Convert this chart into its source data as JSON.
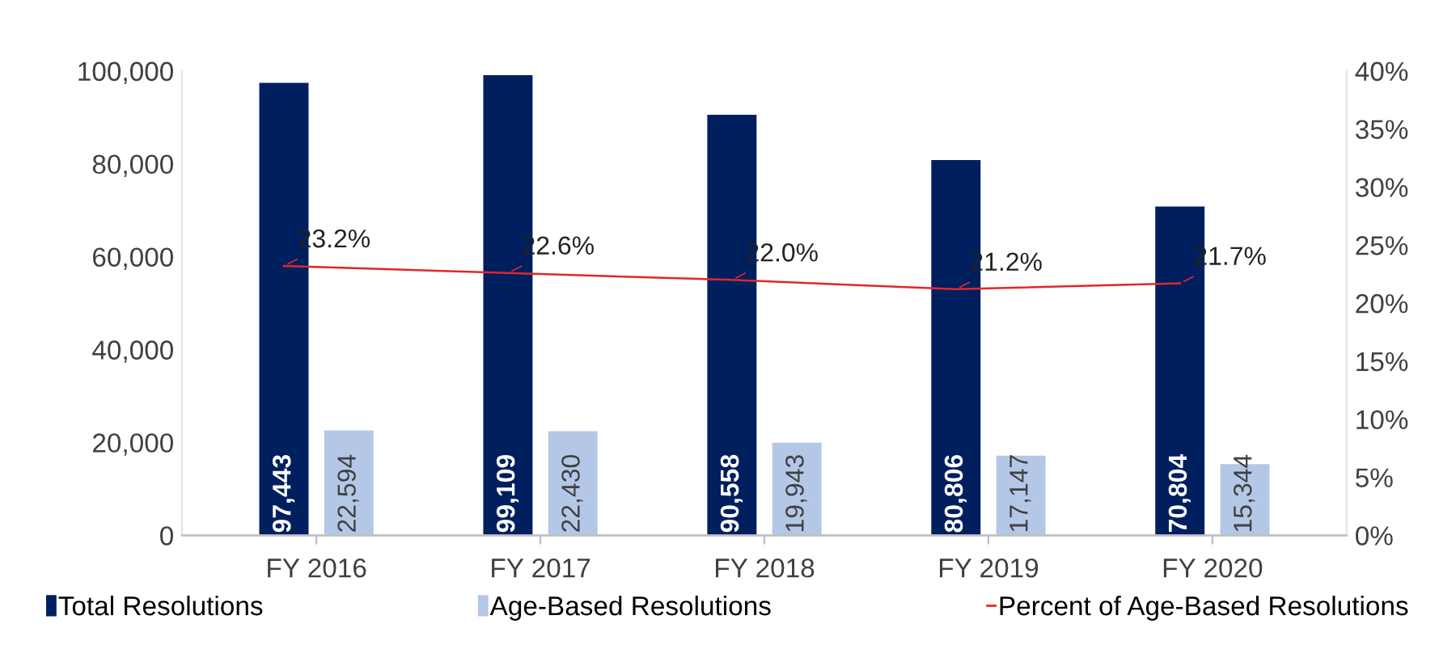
{
  "chart_data": {
    "type": "bar",
    "categories": [
      "FY 2016",
      "FY 2017",
      "FY 2018",
      "FY 2019",
      "FY 2020"
    ],
    "series": [
      {
        "name": "Total Resolutions",
        "color": "#001f5f",
        "values": [
          97443,
          99109,
          90558,
          80806,
          70804
        ],
        "value_labels": [
          "97,443",
          "99,109",
          "90,558",
          "80,806",
          "70,804"
        ]
      },
      {
        "name": "Age-Based Resolutions",
        "color": "#b4c7e7",
        "values": [
          22594,
          22430,
          19943,
          17147,
          15344
        ],
        "value_labels": [
          "22,594",
          "22,430",
          "19,943",
          "17,147",
          "15,344"
        ]
      },
      {
        "name": "Percent of Age-Based Resolutions",
        "type": "line",
        "axis": "y2",
        "color": "#e3262b",
        "values": [
          23.2,
          22.6,
          22.0,
          21.2,
          21.7
        ],
        "value_labels": [
          "23.2%",
          "22.6%",
          "22.0%",
          "21.2%",
          "21.7%"
        ]
      }
    ],
    "ylim": [
      0,
      100000
    ],
    "yticks": [
      {
        "value": 0,
        "label": "0"
      },
      {
        "value": 20000,
        "label": "20,000"
      },
      {
        "value": 40000,
        "label": "40,000"
      },
      {
        "value": 60000,
        "label": "60,000"
      },
      {
        "value": 80000,
        "label": "80,000"
      },
      {
        "value": 100000,
        "label": "100,000"
      }
    ],
    "y2lim": [
      0,
      40
    ],
    "y2ticks": [
      {
        "value": 0,
        "label": "0%"
      },
      {
        "value": 5,
        "label": "5%"
      },
      {
        "value": 10,
        "label": "10%"
      },
      {
        "value": 15,
        "label": "15%"
      },
      {
        "value": 20,
        "label": "20%"
      },
      {
        "value": 25,
        "label": "25%"
      },
      {
        "value": 30,
        "label": "30%"
      },
      {
        "value": 35,
        "label": "35%"
      },
      {
        "value": 40,
        "label": "40%"
      }
    ],
    "legend": "bottom",
    "grid": false,
    "marker": "none"
  }
}
